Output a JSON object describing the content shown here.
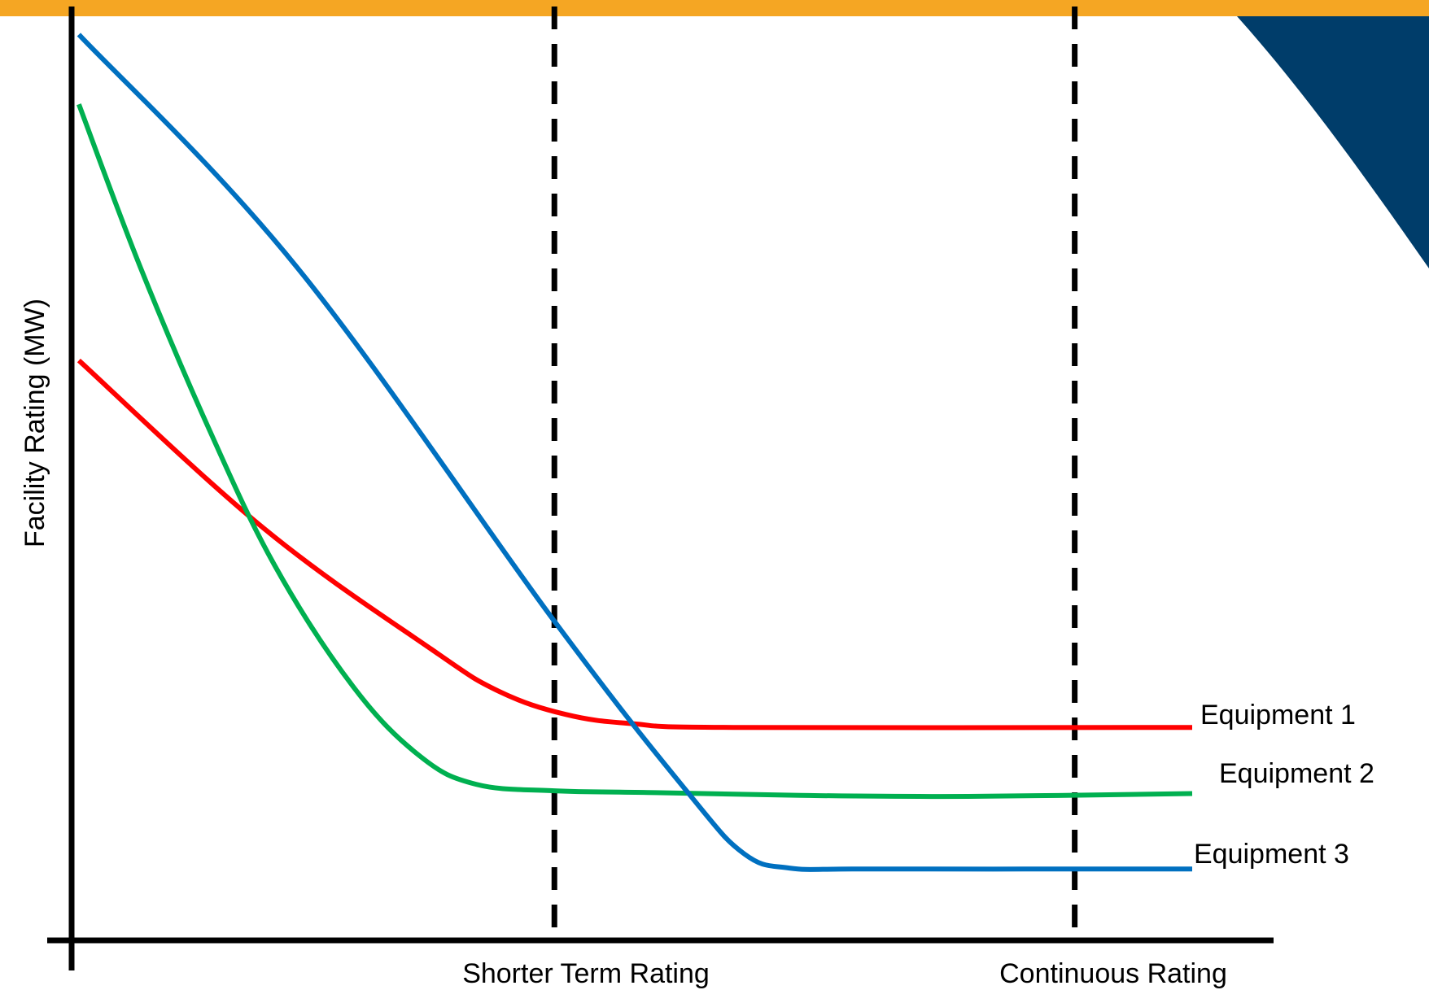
{
  "colors": {
    "top_bar": "#f5a623",
    "corner_shape": "#003d6a",
    "axis": "#000000",
    "marker_lines": "#000000"
  },
  "chart_data": {
    "type": "line",
    "xlabel": "",
    "ylabel": "Facility Rating (MW)",
    "xlim": [
      0,
      100
    ],
    "ylim": [
      0,
      100
    ],
    "grid": false,
    "x_markers": [
      {
        "x": 43,
        "label": "Shorter Term Rating"
      },
      {
        "x": 89.5,
        "label": "Continuous Rating"
      }
    ],
    "series": [
      {
        "name": "Equipment 1",
        "color": "#ff0000",
        "points": [
          [
            0.5,
            62
          ],
          [
            17,
            44
          ],
          [
            32,
            31
          ],
          [
            38,
            26.5
          ],
          [
            44,
            24
          ],
          [
            50,
            23
          ],
          [
            59,
            22.6
          ],
          [
            100,
            22.6
          ]
        ]
      },
      {
        "name": "Equipment 2",
        "color": "#00b050",
        "points": [
          [
            0.5,
            89.5
          ],
          [
            6,
            72
          ],
          [
            12,
            55
          ],
          [
            18,
            40
          ],
          [
            25,
            27
          ],
          [
            31,
            19.5
          ],
          [
            36,
            16.5
          ],
          [
            43,
            15.8
          ],
          [
            52,
            15.6
          ],
          [
            65,
            15.3
          ],
          [
            80,
            15.2
          ],
          [
            100,
            15.5
          ]
        ]
      },
      {
        "name": "Equipment 3",
        "color": "#0070c0",
        "points": [
          [
            0.5,
            97
          ],
          [
            20,
            72
          ],
          [
            43,
            34
          ],
          [
            55,
            15.5
          ],
          [
            60,
            9
          ],
          [
            64,
            7.5
          ],
          [
            70,
            7.4
          ],
          [
            85,
            7.4
          ],
          [
            100,
            7.4
          ]
        ]
      }
    ]
  }
}
